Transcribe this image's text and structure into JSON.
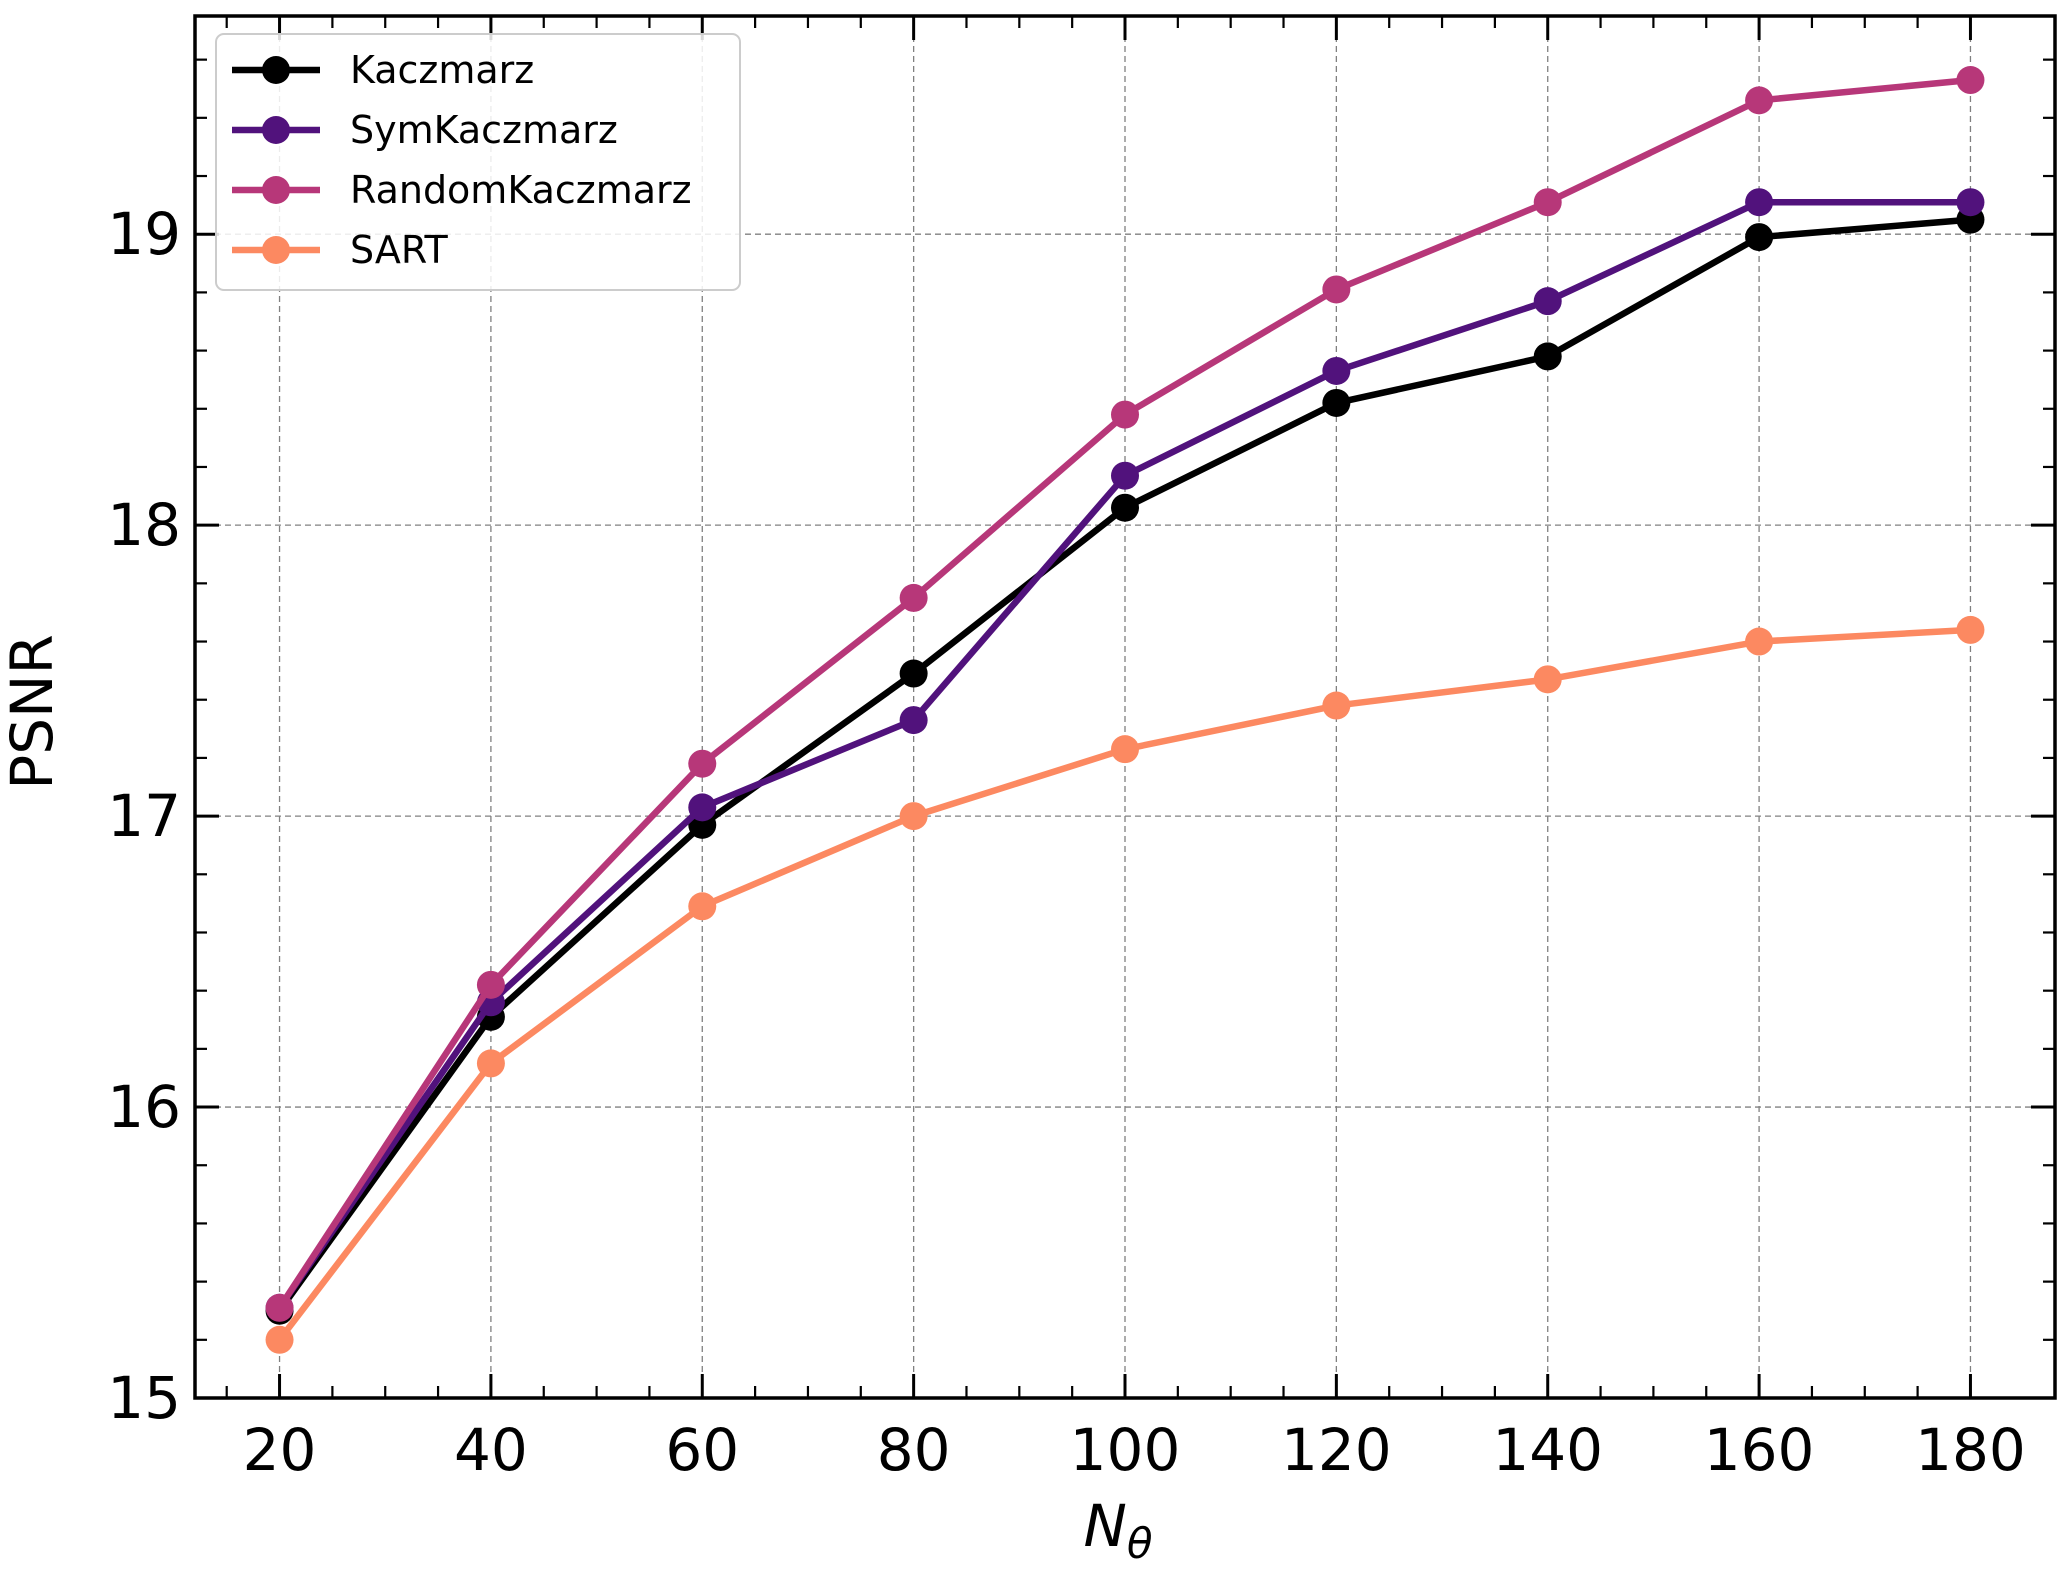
{
  "chart_data": {
    "type": "line",
    "title": "",
    "xlabel_main": "N",
    "xlabel_sub": "θ",
    "ylabel": "PSNR",
    "x": [
      20,
      40,
      60,
      80,
      100,
      120,
      140,
      160,
      180
    ],
    "xlim": [
      12,
      188
    ],
    "ylim": [
      15.0,
      19.75
    ],
    "x_ticks": [
      20,
      40,
      60,
      80,
      100,
      120,
      140,
      160,
      180
    ],
    "y_ticks": [
      15,
      16,
      17,
      18,
      19
    ],
    "grid": true,
    "legend_position": "top-left",
    "series": [
      {
        "name": "Kaczmarz",
        "color": "#000000",
        "values": [
          15.3,
          16.31,
          16.97,
          17.49,
          18.06,
          18.42,
          18.58,
          18.99,
          19.05
        ]
      },
      {
        "name": "SymKaczmarz",
        "color": "#51127c",
        "values": [
          15.31,
          16.36,
          17.03,
          17.33,
          18.17,
          18.53,
          18.77,
          19.11,
          19.11
        ]
      },
      {
        "name": "RandomKaczmarz",
        "color": "#b73779",
        "values": [
          15.31,
          16.42,
          17.18,
          17.75,
          18.38,
          18.81,
          19.11,
          19.46,
          19.53
        ]
      },
      {
        "name": "SART",
        "color": "#fc8961",
        "values": [
          15.2,
          16.15,
          16.69,
          17.0,
          17.23,
          17.38,
          17.47,
          17.6,
          17.64
        ]
      }
    ]
  }
}
